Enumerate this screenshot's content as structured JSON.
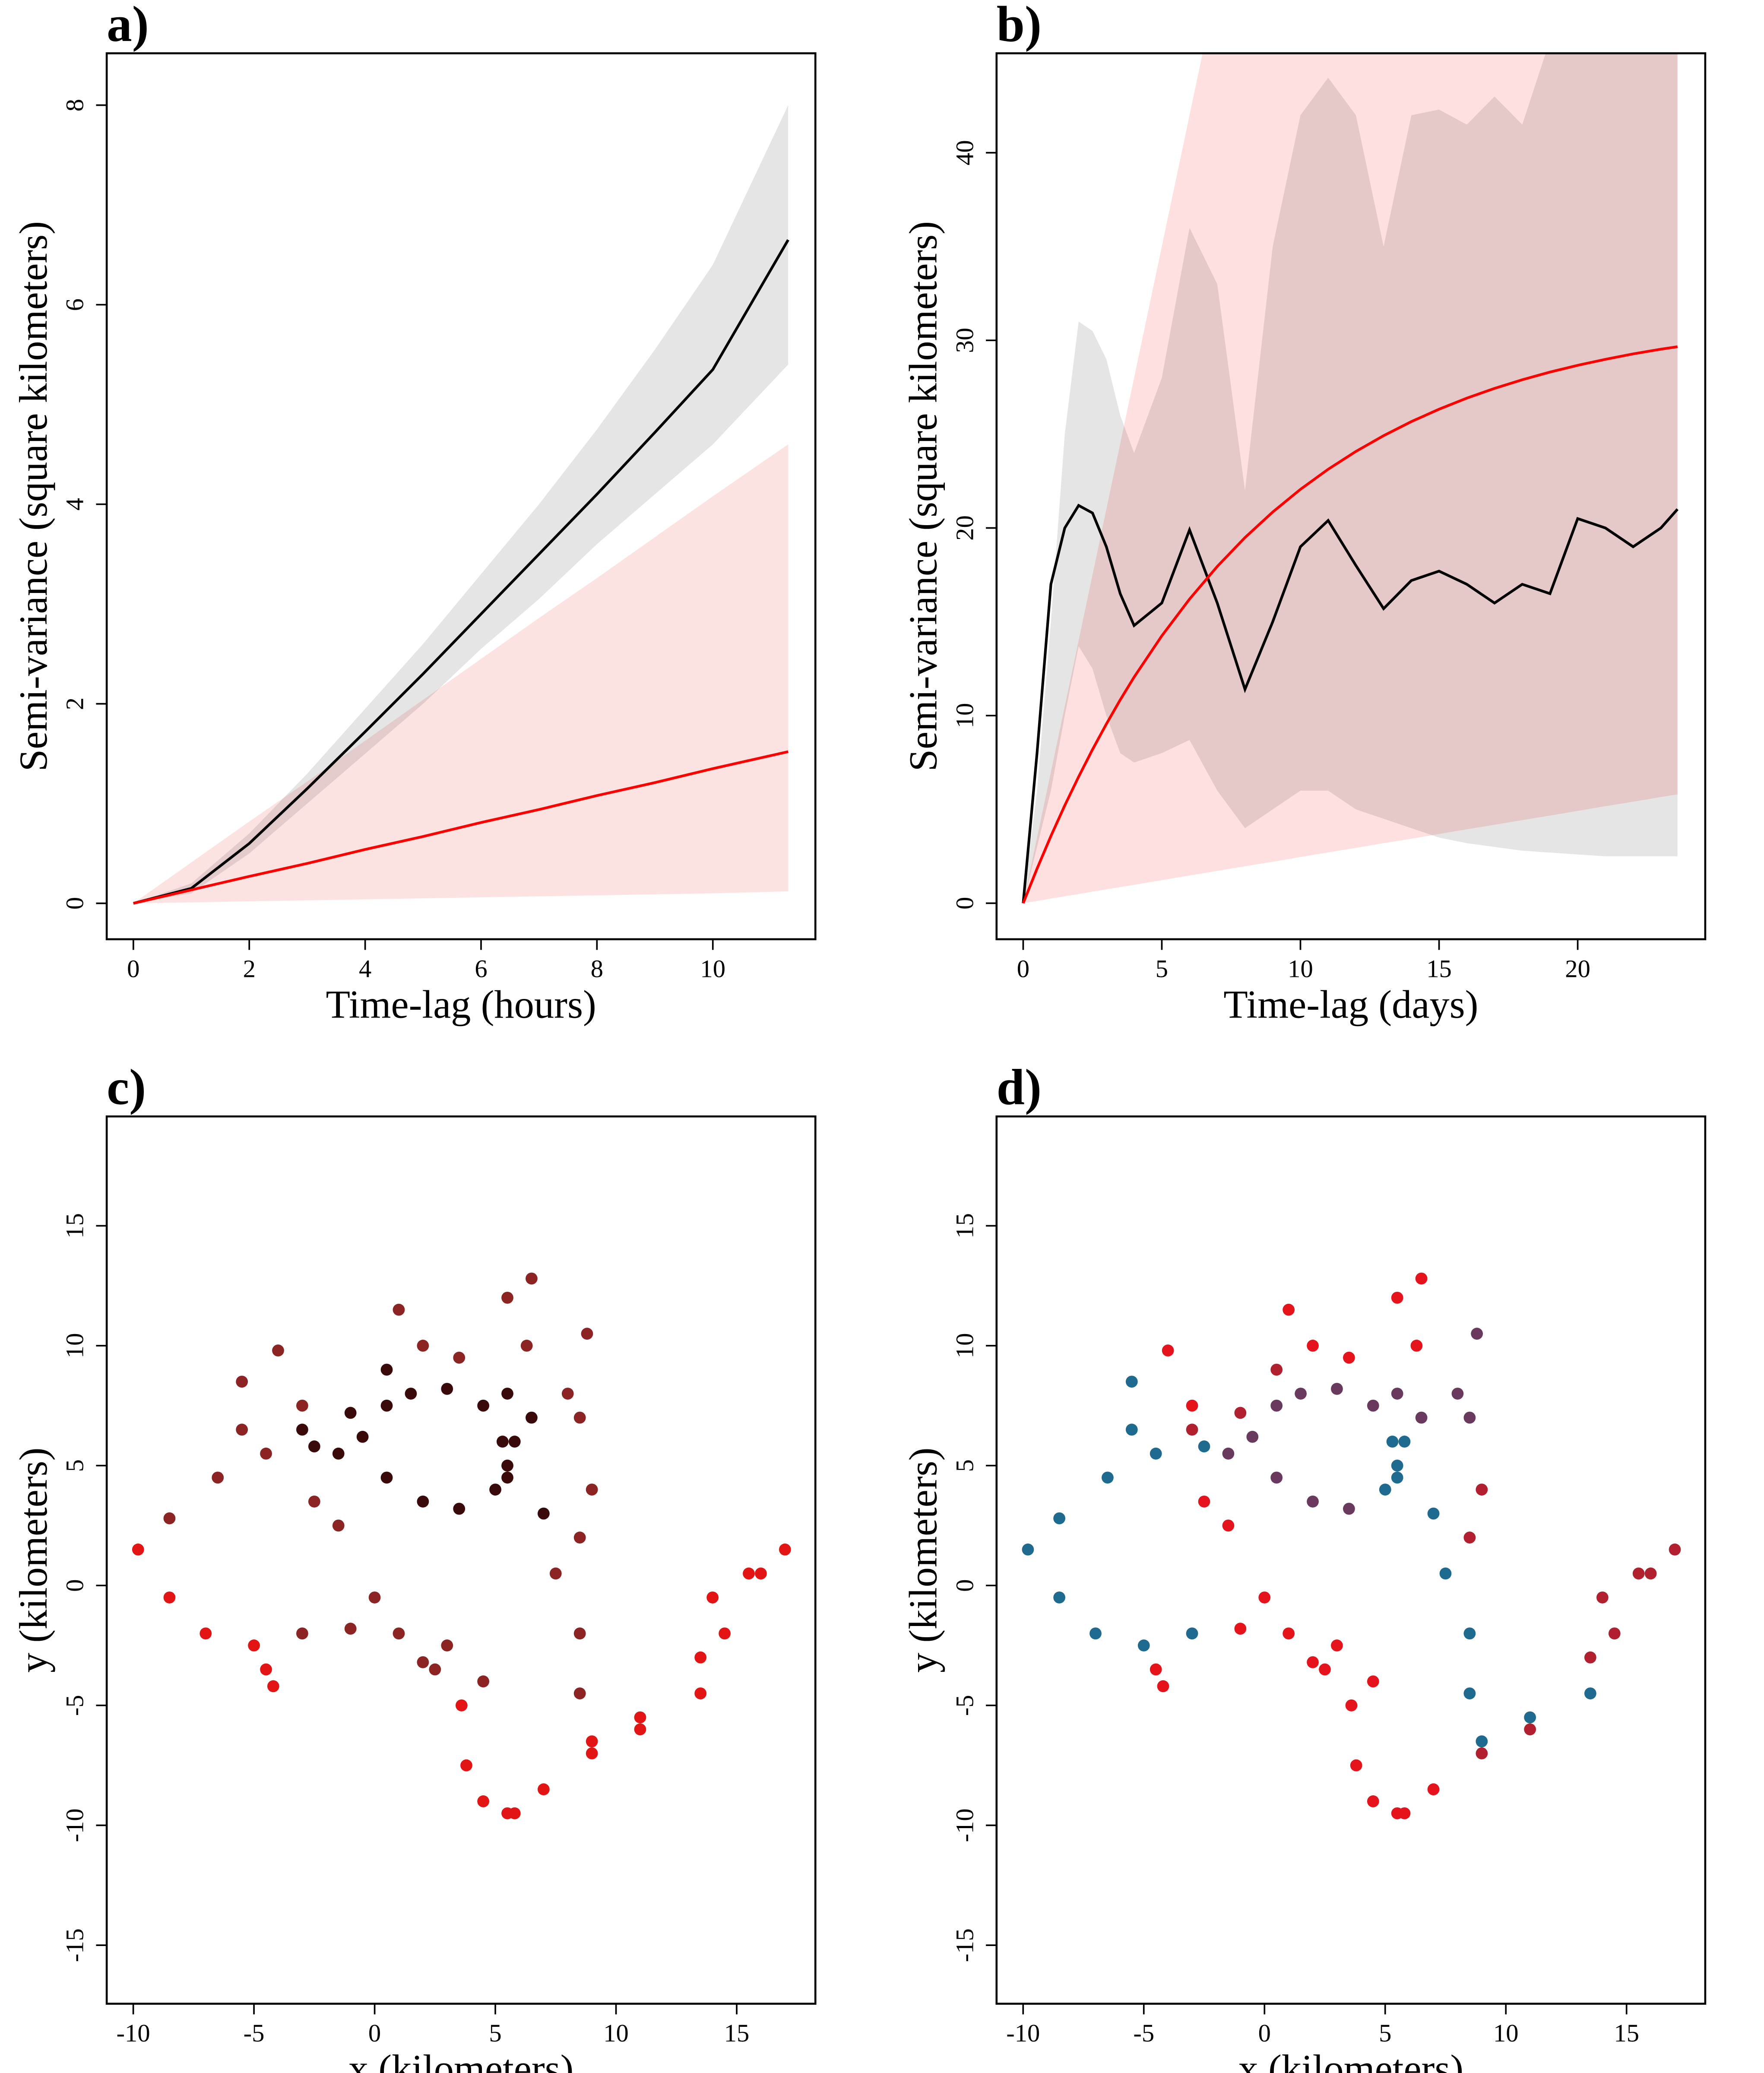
{
  "chart_data": [
    {
      "type": "line",
      "title": "a)",
      "xlabel": "Time-lag (hours)",
      "ylabel": "Semi-variance (square kilometers)",
      "x": [
        0,
        1,
        2,
        3,
        4,
        5,
        6,
        7,
        8,
        9,
        10,
        11.3
      ],
      "xlim": [
        -0.46,
        11.77
      ],
      "ylim": [
        -0.36,
        8.52
      ],
      "xticks": [
        0,
        2,
        4,
        6,
        8,
        10
      ],
      "yticks": [
        0,
        2,
        4,
        6,
        8
      ],
      "bands": [
        {
          "color": "#fde2e2",
          "lower": [
            0,
            0.01,
            0.02,
            0.03,
            0.04,
            0.05,
            0.06,
            0.07,
            0.08,
            0.09,
            0.1,
            0.12
          ],
          "upper": [
            0,
            0.41,
            0.82,
            1.22,
            1.63,
            2.04,
            2.45,
            2.86,
            3.26,
            3.67,
            4.08,
            4.6
          ]
        },
        {
          "color": "#e5e5e5",
          "lower": [
            0,
            0.1,
            0.5,
            1.0,
            1.5,
            2.0,
            2.55,
            3.05,
            3.6,
            4.1,
            4.6,
            5.4
          ],
          "upper": [
            0,
            0.2,
            0.7,
            1.3,
            1.95,
            2.6,
            3.3,
            4.0,
            4.75,
            5.55,
            6.4,
            8.0
          ]
        }
      ],
      "series": [
        {
          "color": "#000000",
          "values": [
            0,
            0.15,
            0.6,
            1.15,
            1.72,
            2.3,
            2.9,
            3.5,
            4.1,
            4.72,
            5.35,
            6.65
          ]
        },
        {
          "color": "#ff0000",
          "values": [
            0,
            0.135,
            0.27,
            0.4,
            0.54,
            0.67,
            0.81,
            0.94,
            1.08,
            1.21,
            1.35,
            1.52
          ]
        }
      ]
    },
    {
      "type": "line",
      "title": "b)",
      "xlabel": "Time-lag (days)",
      "ylabel": "Semi-variance (square kilometers)",
      "x": [
        0,
        0.5,
        1,
        1.5,
        2,
        2.5,
        3,
        3.5,
        4,
        5,
        6,
        7,
        8,
        9,
        10,
        11,
        12,
        13,
        14,
        15,
        16,
        17,
        18,
        19,
        20,
        21,
        22,
        23,
        23.6
      ],
      "xlim": [
        -0.96,
        24.6
      ],
      "ylim": [
        -1.92,
        45.3
      ],
      "xticks": [
        0,
        5,
        10,
        15,
        20
      ],
      "yticks": [
        0,
        10,
        20,
        30,
        40
      ],
      "bands": [
        {
          "color": "#e5e5e5",
          "lower": [
            0,
            3,
            6,
            10,
            13.7,
            12.5,
            10,
            8,
            7.5,
            8,
            8.7,
            6,
            4,
            5,
            6,
            6,
            5,
            4.5,
            4,
            3.5,
            3.2,
            3,
            2.8,
            2.7,
            2.6,
            2.5,
            2.5,
            2.5,
            2.5
          ],
          "upper": [
            0,
            6,
            15,
            25,
            31,
            30.5,
            29,
            26,
            24,
            28,
            36,
            33,
            22,
            35,
            42,
            44,
            42,
            35,
            42,
            42.3,
            41.5,
            43,
            41.5,
            46,
            50,
            50,
            50,
            50,
            50
          ]
        },
        {
          "color": "#ffe0e0",
          "lower": [
            0,
            0.12,
            0.25,
            0.37,
            0.49,
            0.62,
            0.74,
            0.86,
            0.98,
            1.23,
            1.48,
            1.72,
            1.97,
            2.21,
            2.46,
            2.71,
            2.95,
            3.2,
            3.44,
            3.69,
            3.94,
            4.18,
            4.43,
            4.67,
            4.92,
            5.17,
            5.41,
            5.66,
            5.8
          ],
          "upper": [
            0,
            3.5,
            7,
            10.5,
            14,
            17.5,
            21,
            24.5,
            28,
            35,
            42,
            49,
            56,
            63,
            70,
            77,
            84,
            91,
            98,
            105,
            112,
            119,
            126,
            133,
            140,
            147,
            154,
            161,
            165
          ]
        }
      ],
      "series": [
        {
          "color": "#000000",
          "values": [
            0,
            8,
            17,
            20,
            21.2,
            20.8,
            19,
            16.5,
            14.8,
            16,
            19.9,
            16,
            11.4,
            15,
            19,
            20.4,
            18,
            15.7,
            17.2,
            17.7,
            17,
            16,
            17,
            16.5,
            20.5,
            20,
            19,
            20,
            21
          ]
        },
        {
          "color": "#ff0000",
          "values": [
            0,
            1.84,
            3.58,
            5.21,
            6.74,
            8.19,
            9.55,
            10.84,
            12.05,
            14.25,
            16.21,
            17.95,
            19.49,
            20.85,
            22.06,
            23.13,
            24.08,
            24.92,
            25.67,
            26.33,
            26.92,
            27.44,
            27.9,
            28.31,
            28.67,
            28.99,
            29.28,
            29.53,
            29.66
          ]
        }
      ]
    },
    {
      "type": "scatter",
      "title": "c)",
      "xlabel": "x (kilometers)",
      "ylabel": "y (kilometers)",
      "xlim": [
        -11.1,
        18.26
      ],
      "ylim": [
        -17.44,
        19.56
      ],
      "xticks": [
        -10,
        -5,
        0,
        5,
        10,
        15
      ],
      "yticks": [
        -15,
        -10,
        -5,
        0,
        5,
        10,
        15
      ],
      "series": [
        {
          "color": "#e31414",
          "x": [
            5.5,
            4.5,
            3.8,
            3.6,
            7,
            5.8,
            9,
            11,
            13.5,
            14,
            16,
            17,
            15.5,
            14.5,
            13.5,
            11,
            9,
            -9.8,
            -8.5,
            -7,
            -5,
            -4.5,
            -4.2
          ],
          "y": [
            -9.5,
            -9,
            -7.5,
            -5,
            -8.5,
            -9.5,
            -7,
            -6,
            -3,
            -0.5,
            0.5,
            1.5,
            0.5,
            -2,
            -4.5,
            -5.5,
            -6.5,
            1.5,
            -0.5,
            -2,
            -2.5,
            -3.5,
            -4.2
          ]
        },
        {
          "color": "#8c2424",
          "x": [
            2.5,
            1,
            -1,
            -3,
            -8.5,
            -6.5,
            -4.5,
            -3,
            -4,
            -5.5,
            -5.5,
            1,
            2,
            3.5,
            5.5,
            6.5,
            6.3,
            8.5,
            9,
            8.5,
            8.8,
            8,
            7.5,
            8.5,
            8.5,
            0,
            -1.5,
            -2.5,
            4.5,
            3,
            2
          ],
          "y": [
            -3.5,
            -2,
            -1.8,
            -2,
            2.8,
            4.5,
            5.5,
            7.5,
            9.8,
            8.5,
            6.5,
            11.5,
            10,
            9.5,
            12,
            12.8,
            10,
            2,
            4,
            7,
            10.5,
            8,
            0.5,
            -2,
            -4.5,
            -0.5,
            2.5,
            3.5,
            -4,
            -2.5,
            -3.2
          ]
        },
        {
          "color": "#3a0a0a",
          "x": [
            -2.5,
            -0.5,
            0.5,
            1.5,
            3,
            4.5,
            5.3,
            5,
            3.5,
            2,
            0.5,
            -1.5,
            -3,
            -1,
            0.5,
            5.5,
            5.8,
            5.5,
            7,
            6.5,
            5.5
          ],
          "y": [
            5.8,
            6.2,
            7.5,
            8,
            8.2,
            7.5,
            6,
            4,
            3.2,
            3.5,
            4.5,
            5.5,
            6.5,
            7.2,
            9,
            8,
            6,
            4.5,
            3,
            7,
            5
          ]
        }
      ]
    },
    {
      "type": "scatter",
      "title": "d)",
      "xlabel": "x (kilometers)",
      "ylabel": "y (kilometers)",
      "xlim": [
        -11.1,
        18.26
      ],
      "ylim": [
        -17.44,
        19.56
      ],
      "xticks": [
        -10,
        -5,
        0,
        5,
        10,
        15
      ],
      "yticks": [
        -15,
        -10,
        -5,
        0,
        5,
        10,
        15
      ],
      "series": [
        {
          "color": "#1f6a8f",
          "x": [
            -9.8,
            -8.5,
            -6.5,
            -4.5,
            -8.5,
            -7,
            -5,
            -3,
            -5.5,
            -5.5,
            -2.5,
            5.3,
            5,
            5.5,
            5.8,
            5.5,
            7,
            7.5,
            8.5,
            8.5,
            9,
            11,
            13.5
          ],
          "y": [
            1.5,
            2.8,
            4.5,
            5.5,
            -0.5,
            -2,
            -2.5,
            -2,
            8.5,
            6.5,
            5.8,
            6,
            4,
            4.5,
            6,
            5,
            3,
            0.5,
            -2,
            -4.5,
            -6.5,
            -5.5,
            -4.5
          ]
        },
        {
          "color": "#e5141c",
          "x": [
            5.5,
            4.5,
            3.8,
            3.6,
            5.8,
            7,
            -4.5,
            -4.2,
            1,
            2,
            3.5,
            5.5,
            6.5,
            6.3,
            -1.5,
            -2.5,
            0,
            2.5,
            1,
            -1,
            4.5,
            3,
            2,
            -4,
            -3
          ],
          "y": [
            -9.5,
            -9,
            -7.5,
            -5,
            -9.5,
            -8.5,
            -3.5,
            -4.2,
            11.5,
            10,
            9.5,
            12,
            12.8,
            10,
            2.5,
            3.5,
            -0.5,
            -3.5,
            -2,
            -1.8,
            -4,
            -2.5,
            -3.2,
            9.8,
            7.5
          ]
        },
        {
          "color": "#b0202e",
          "x": [
            9,
            11,
            13.5,
            14,
            16,
            17,
            15.5,
            14.5,
            8.5,
            9,
            0.5,
            -1,
            -3
          ],
          "y": [
            -7,
            -6,
            -3,
            -0.5,
            0.5,
            1.5,
            0.5,
            -2,
            2,
            4,
            9,
            7.2,
            6.5
          ]
        },
        {
          "color": "#6a3a5e",
          "x": [
            8.5,
            8.8,
            8,
            6.5,
            5.5,
            -0.5,
            1.5,
            3,
            4.5,
            3.5,
            2,
            0.5,
            -1.5,
            0.5
          ],
          "y": [
            7,
            10.5,
            8,
            7,
            8,
            6.2,
            8,
            8.2,
            7.5,
            3.2,
            3.5,
            4.5,
            5.5,
            7.5
          ]
        }
      ]
    }
  ]
}
